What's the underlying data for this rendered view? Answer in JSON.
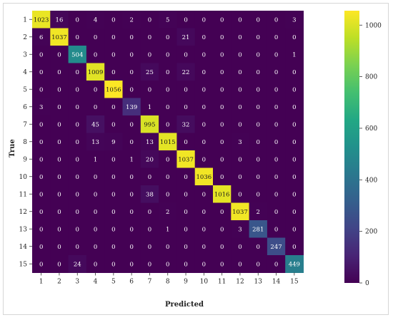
{
  "chart_data": {
    "type": "heatmap",
    "title": "",
    "xlabel": "Predicted",
    "ylabel": "True",
    "x_categories": [
      "1",
      "2",
      "3",
      "4",
      "5",
      "6",
      "7",
      "8",
      "9",
      "10",
      "11",
      "12",
      "13",
      "14",
      "15"
    ],
    "y_categories": [
      "1",
      "2",
      "3",
      "4",
      "5",
      "6",
      "7",
      "8",
      "9",
      "10",
      "11",
      "12",
      "13",
      "14",
      "15"
    ],
    "values": [
      [
        1023,
        16,
        0,
        4,
        0,
        2,
        0,
        5,
        0,
        0,
        0,
        0,
        0,
        0,
        3
      ],
      [
        6,
        1037,
        0,
        0,
        0,
        0,
        0,
        0,
        21,
        0,
        0,
        0,
        0,
        0,
        0
      ],
      [
        0,
        0,
        504,
        0,
        0,
        0,
        0,
        0,
        0,
        0,
        0,
        0,
        0,
        0,
        1
      ],
      [
        0,
        0,
        0,
        1009,
        0,
        0,
        25,
        0,
        22,
        0,
        0,
        0,
        0,
        0,
        0
      ],
      [
        0,
        0,
        0,
        0,
        1056,
        0,
        0,
        0,
        0,
        0,
        0,
        0,
        0,
        0,
        0
      ],
      [
        3,
        0,
        0,
        0,
        0,
        139,
        1,
        0,
        0,
        0,
        0,
        0,
        0,
        0,
        0
      ],
      [
        0,
        0,
        0,
        45,
        0,
        0,
        995,
        0,
        32,
        0,
        0,
        0,
        0,
        0,
        0
      ],
      [
        0,
        0,
        0,
        13,
        9,
        0,
        13,
        1015,
        0,
        0,
        0,
        3,
        0,
        0,
        0
      ],
      [
        0,
        0,
        0,
        1,
        0,
        1,
        20,
        0,
        1037,
        0,
        0,
        0,
        0,
        0,
        0
      ],
      [
        0,
        0,
        0,
        0,
        0,
        0,
        0,
        0,
        0,
        1036,
        0,
        0,
        0,
        0,
        0
      ],
      [
        0,
        0,
        0,
        0,
        0,
        0,
        38,
        0,
        0,
        0,
        1016,
        0,
        0,
        0,
        0
      ],
      [
        0,
        0,
        0,
        0,
        0,
        0,
        0,
        2,
        0,
        0,
        0,
        1037,
        2,
        0,
        0
      ],
      [
        0,
        0,
        0,
        0,
        0,
        0,
        0,
        1,
        0,
        0,
        0,
        3,
        281,
        0,
        0
      ],
      [
        0,
        0,
        0,
        0,
        0,
        0,
        0,
        0,
        0,
        0,
        0,
        0,
        0,
        247,
        0
      ],
      [
        0,
        0,
        24,
        0,
        0,
        0,
        0,
        0,
        0,
        0,
        0,
        0,
        0,
        0,
        449
      ]
    ],
    "colorbar": {
      "colormap": "viridis",
      "vmin": 0,
      "vmax": 1056,
      "ticks": [
        "0",
        "200",
        "400",
        "600",
        "800",
        "1000"
      ]
    },
    "grid": false,
    "legend": "colorbar-right"
  }
}
